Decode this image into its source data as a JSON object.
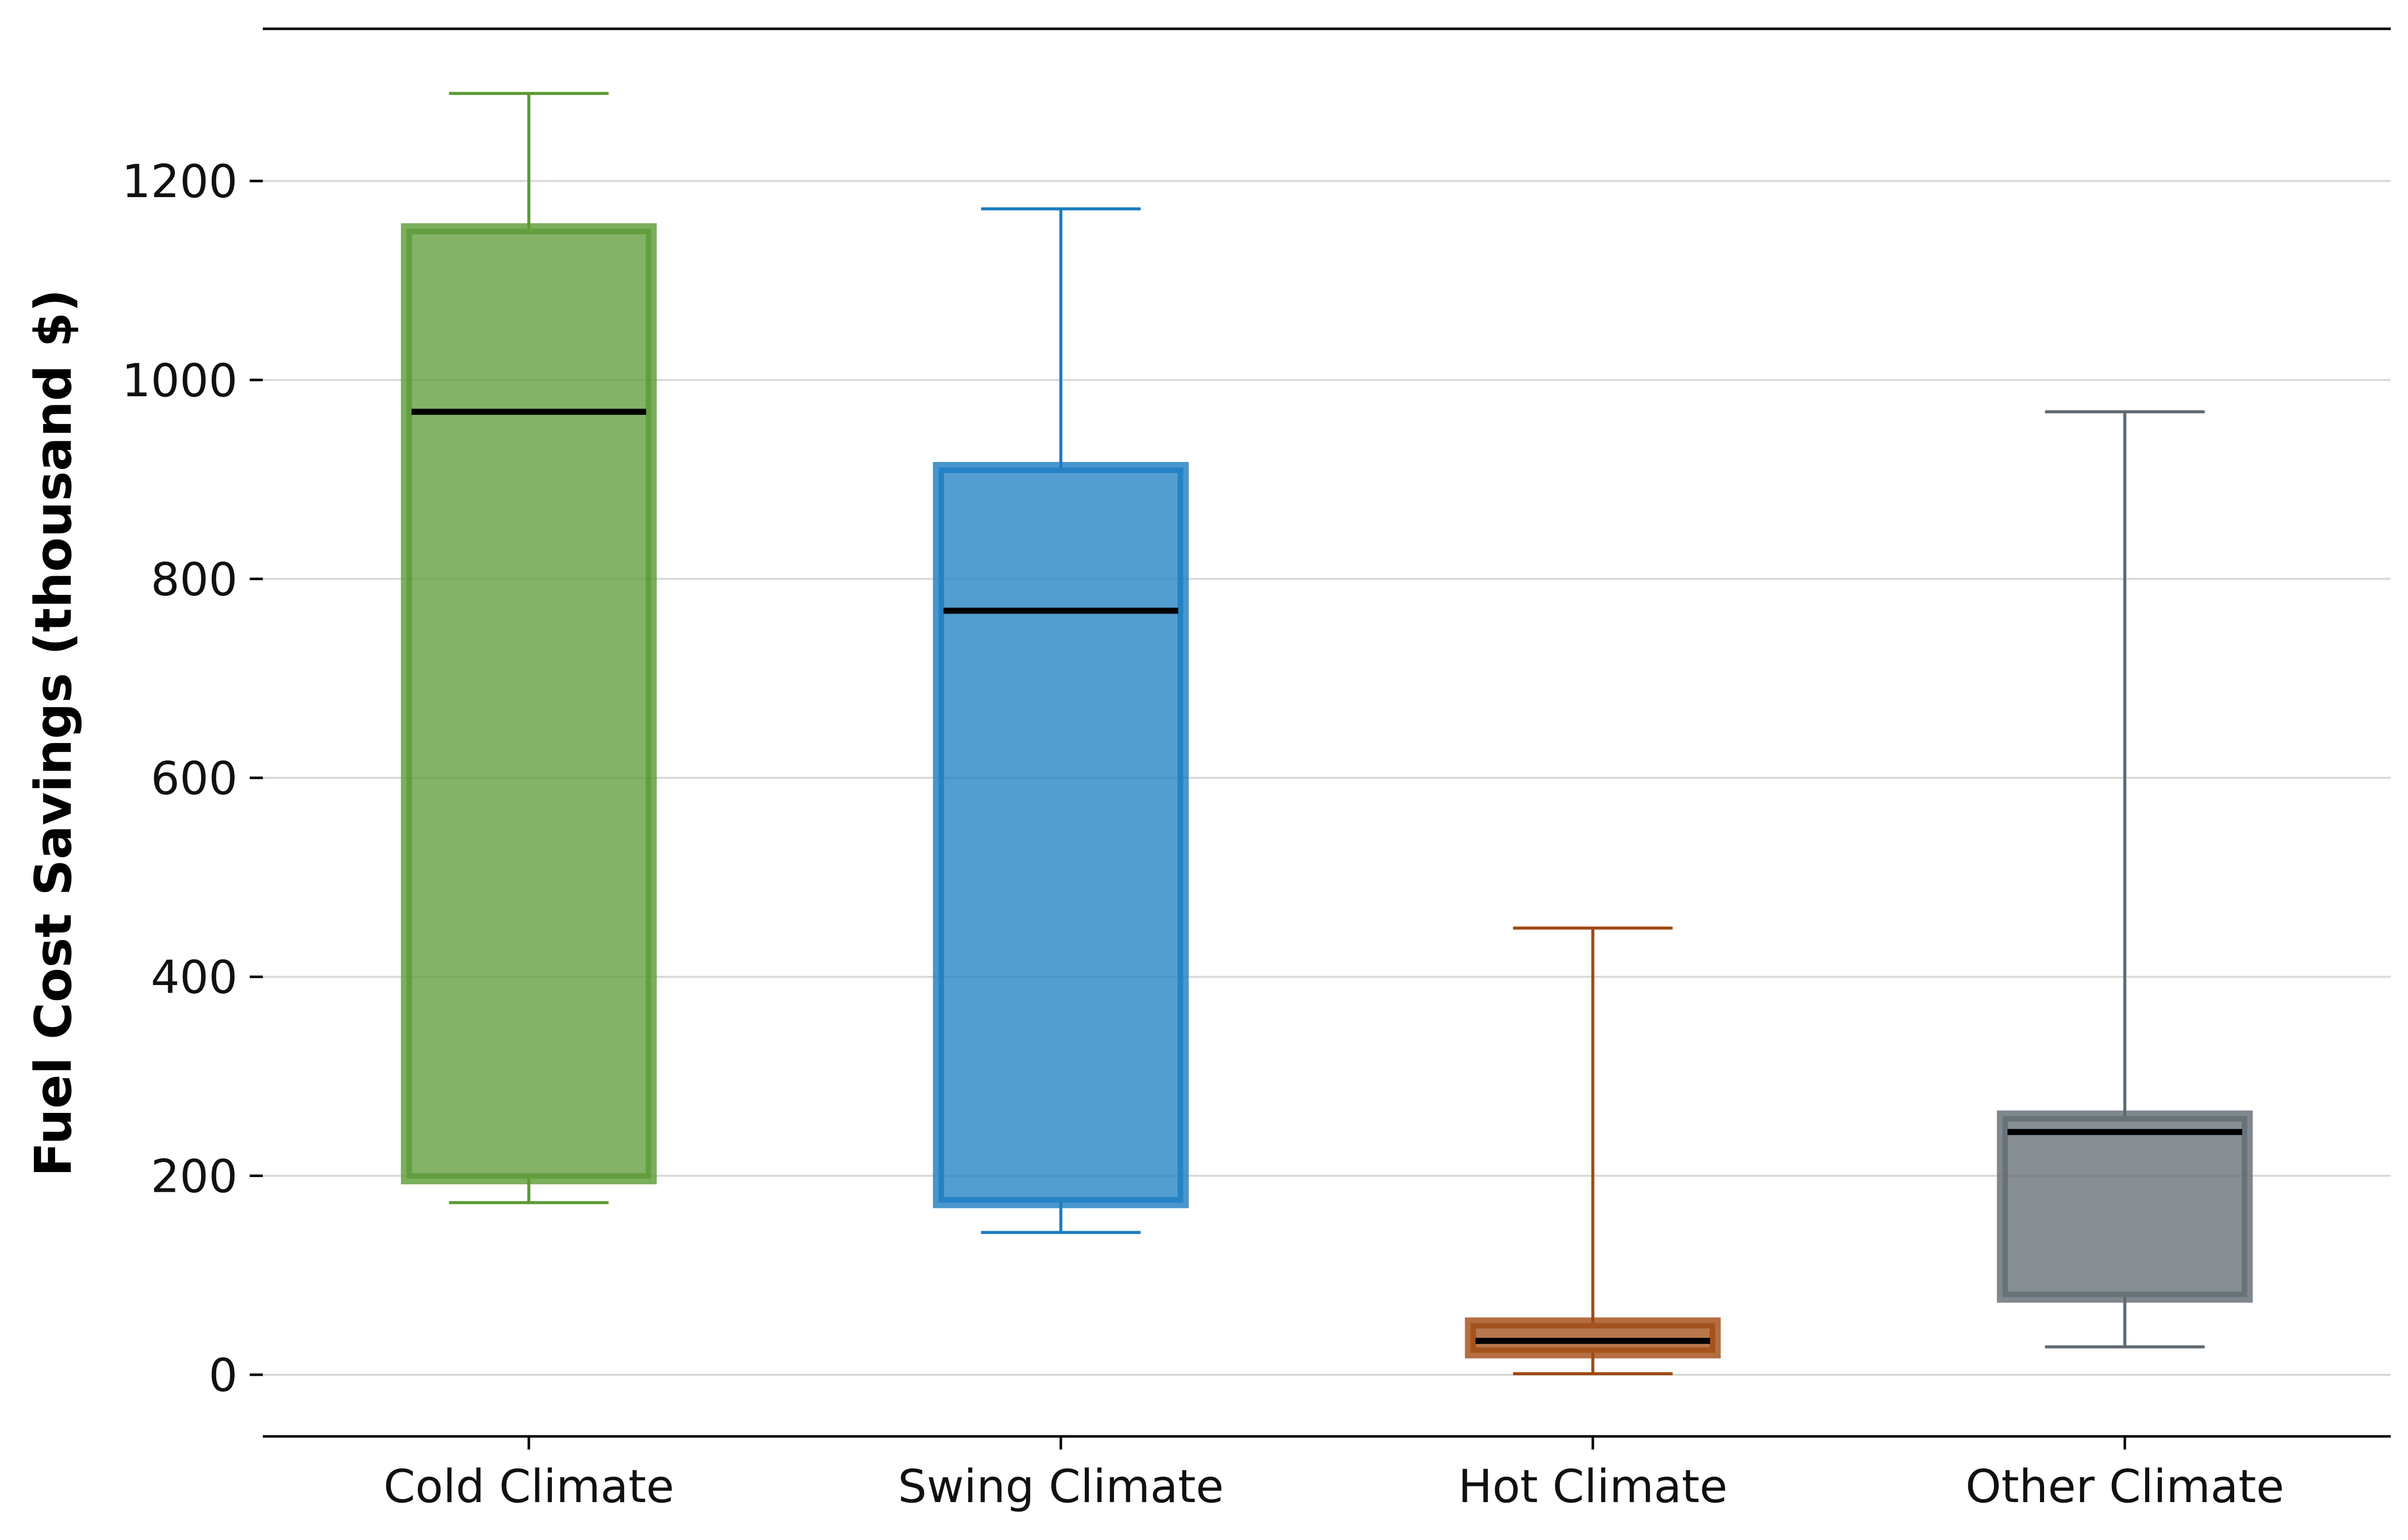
{
  "chart_data": {
    "type": "box",
    "title": "",
    "xlabel": "",
    "ylabel": "Fuel Cost Savings (thousand $)",
    "ylim": [
      -62,
      1353
    ],
    "yticks": [
      0,
      200,
      400,
      600,
      800,
      1000,
      1200
    ],
    "grid": "horizontal",
    "categories": [
      "Cold Climate",
      "Swing Climate",
      "Hot Climate",
      "Other Climate"
    ],
    "boxes": [
      {
        "category": "Cold Climate",
        "whisker_low": 173,
        "q1": 197,
        "median": 968,
        "q3": 1152,
        "whisker_high": 1288,
        "color": "#5b9a35"
      },
      {
        "category": "Swing Climate",
        "whisker_low": 143,
        "q1": 173,
        "median": 768,
        "q3": 912,
        "whisker_high": 1172,
        "color": "#1a7cc1"
      },
      {
        "category": "Hot Climate",
        "whisker_low": 1,
        "q1": 22,
        "median": 34,
        "q3": 52,
        "whisker_high": 449,
        "color": "#a04a12"
      },
      {
        "category": "Other Climate",
        "whisker_low": 28,
        "q1": 78,
        "median": 244,
        "q3": 260,
        "whisker_high": 968,
        "color": "#5f6a72"
      }
    ]
  }
}
